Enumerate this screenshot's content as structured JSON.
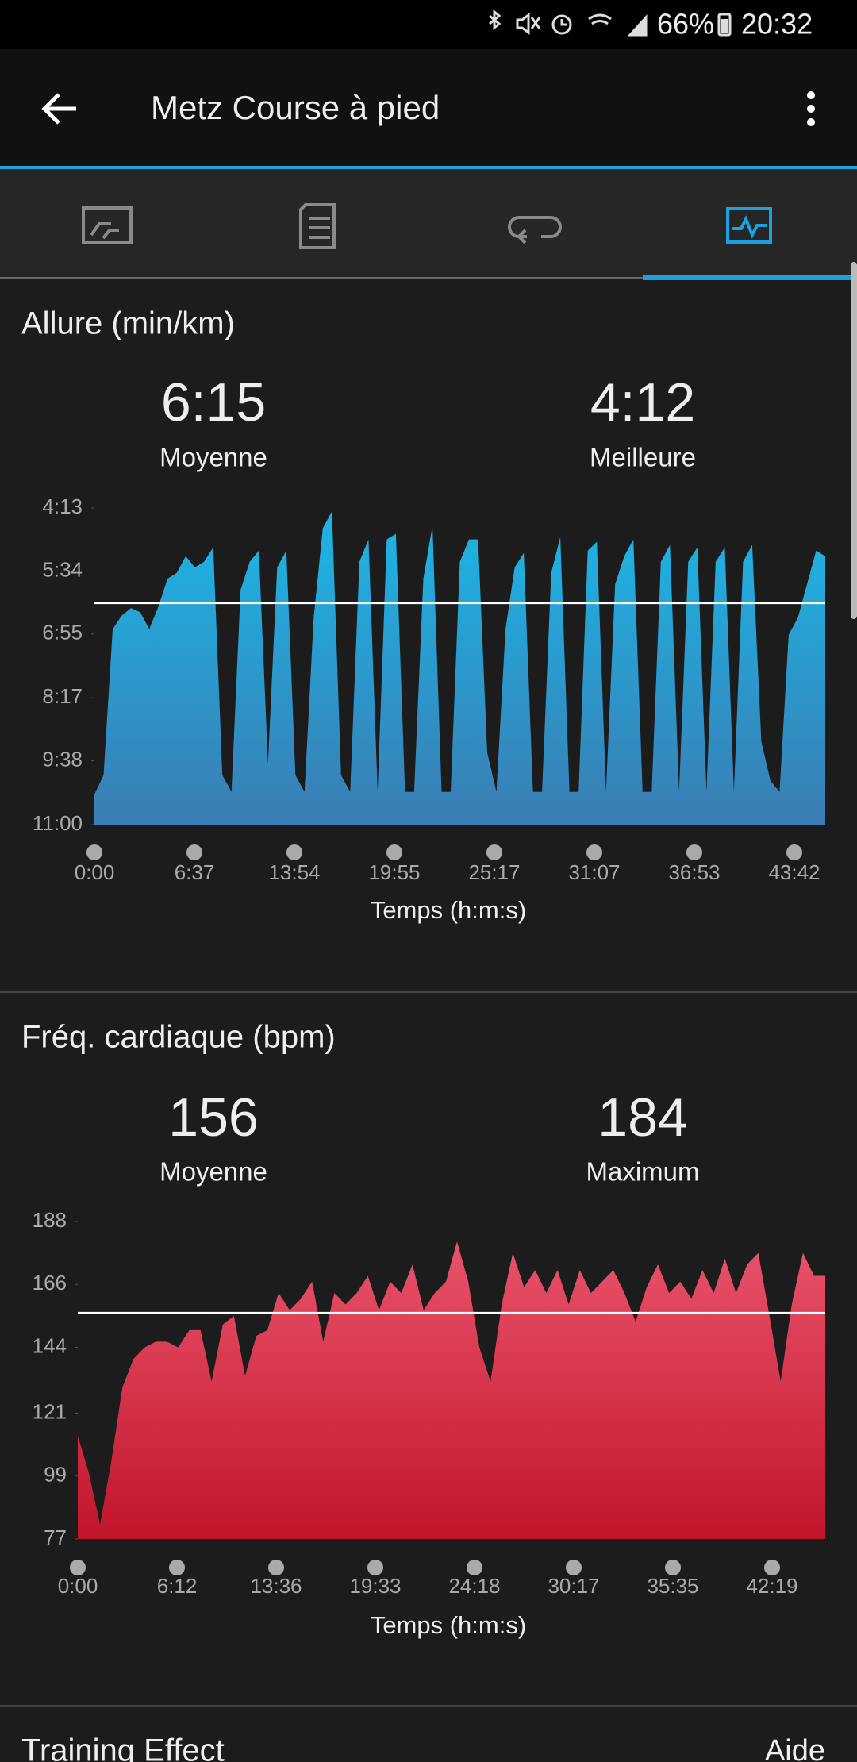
{
  "status_bar": {
    "battery": "66%",
    "time": "20:32"
  },
  "header": {
    "title": "Metz Course à pied"
  },
  "chart_data": [
    {
      "type": "area",
      "title": "Allure (min/km)",
      "color": "#1cb6e5",
      "summary": [
        {
          "value": 6.25,
          "label": "6:15",
          "name": "Moyenne"
        },
        {
          "value": 4.2,
          "label": "4:12",
          "name": "Meilleure"
        }
      ],
      "ylim": [
        11.0,
        4.217
      ],
      "yticks": [
        {
          "value": 4.217,
          "label": "4:13"
        },
        {
          "value": 5.567,
          "label": "5:34"
        },
        {
          "value": 6.917,
          "label": "6:55"
        },
        {
          "value": 8.283,
          "label": "8:17"
        },
        {
          "value": 9.633,
          "label": "9:38"
        },
        {
          "value": 11.0,
          "label": "11:00"
        }
      ],
      "xticks": [
        "0:00",
        "6:37",
        "13:54",
        "19:55",
        "25:17",
        "31:07",
        "36:53",
        "43:42"
      ],
      "x_label": "Temps (h:m:s)",
      "values": [
        10.35,
        9.94,
        6.81,
        6.52,
        6.36,
        6.45,
        6.81,
        6.33,
        5.73,
        5.61,
        5.25,
        5.49,
        5.37,
        5.06,
        9.94,
        10.3,
        5.97,
        5.37,
        5.13,
        9.7,
        5.49,
        5.13,
        9.94,
        10.3,
        6.57,
        4.65,
        4.29,
        9.94,
        10.3,
        5.37,
        4.89,
        10.3,
        4.89,
        4.77,
        10.3,
        10.3,
        5.73,
        4.6,
        10.3,
        10.3,
        5.37,
        4.89,
        4.89,
        9.46,
        10.3,
        6.81,
        5.49,
        5.18,
        10.3,
        10.3,
        5.61,
        4.84,
        10.3,
        10.3,
        5.13,
        4.94,
        10.3,
        5.85,
        5.25,
        4.89,
        10.3,
        10.3,
        5.37,
        5.01,
        10.3,
        5.37,
        5.06,
        10.3,
        5.37,
        5.06,
        10.3,
        5.37,
        5.01,
        9.22,
        10.06,
        10.3,
        6.93,
        6.57,
        5.85,
        5.13,
        5.25
      ]
    },
    {
      "type": "area",
      "title": "Fréq. cardiaque (bpm)",
      "color": "#e9536c",
      "summary": [
        {
          "value": 156,
          "name": "Moyenne"
        },
        {
          "value": 184,
          "name": "Maximum"
        }
      ],
      "ylim": [
        77,
        188
      ],
      "yticks": [
        188,
        166,
        144,
        121,
        99,
        77
      ],
      "xticks": [
        "0:00",
        "6:12",
        "13:36",
        "19:33",
        "24:18",
        "30:17",
        "35:35",
        "42:19"
      ],
      "x_label": "Temps (h:m:s)",
      "values": [
        113,
        100,
        82,
        104,
        130,
        140,
        144,
        146,
        146,
        144,
        150,
        150,
        132,
        152,
        155,
        134,
        148,
        150,
        163,
        157,
        161,
        167,
        146,
        163,
        159,
        163,
        169,
        157,
        167,
        163,
        173,
        157,
        163,
        167,
        181,
        167,
        144,
        132,
        159,
        177,
        165,
        171,
        163,
        171,
        159,
        171,
        163,
        167,
        171,
        163,
        153,
        165,
        173,
        163,
        167,
        161,
        171,
        163,
        175,
        163,
        173,
        177,
        155,
        132,
        159,
        177,
        169,
        169
      ]
    }
  ],
  "footer_section": {
    "title": "Training Effect",
    "link": "Aide"
  }
}
